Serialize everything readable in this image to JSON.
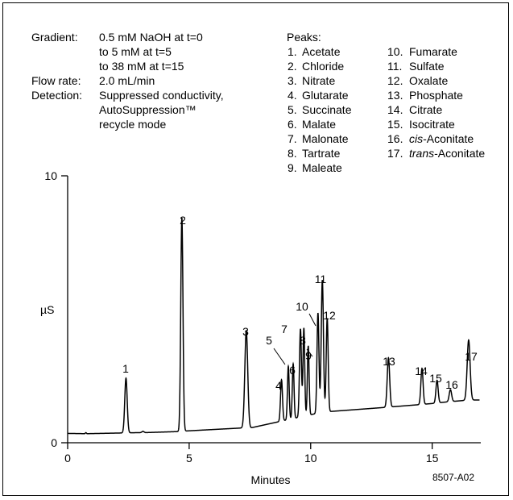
{
  "conditions": {
    "gradient_label": "Gradient:",
    "gradient_lines": [
      "0.5 mM NaOH at t=0",
      "to 5 mM at t=5",
      "to 38 mM at t=15"
    ],
    "flow_label": "Flow rate:",
    "flow_value": "2.0 mL/min",
    "detection_label": "Detection:",
    "detection_lines": [
      "Suppressed conductivity,",
      "AutoSuppression™",
      "recycle mode"
    ]
  },
  "peaks_legend": {
    "title": "Peaks:",
    "col1": [
      {
        "num": "1.",
        "name": "Acetate"
      },
      {
        "num": "2.",
        "name": "Chloride"
      },
      {
        "num": "3.",
        "name": "Nitrate"
      },
      {
        "num": "4.",
        "name": "Glutarate"
      },
      {
        "num": "5.",
        "name": "Succinate"
      },
      {
        "num": "6.",
        "name": "Malate"
      },
      {
        "num": "7.",
        "name": "Malonate"
      },
      {
        "num": "8.",
        "name": "Tartrate"
      },
      {
        "num": "9.",
        "name": "Maleate"
      }
    ],
    "col2": [
      {
        "num": "10.",
        "italic": "",
        "name": "Fumarate"
      },
      {
        "num": "11.",
        "italic": "",
        "name": "Sulfate"
      },
      {
        "num": "12.",
        "italic": "",
        "name": "Oxalate"
      },
      {
        "num": "13.",
        "italic": "",
        "name": "Phosphate"
      },
      {
        "num": "14.",
        "italic": "",
        "name": "Citrate"
      },
      {
        "num": "15.",
        "italic": "",
        "name": "Isocitrate"
      },
      {
        "num": "16.",
        "italic": "cis",
        "name": "-Aconitate"
      },
      {
        "num": "17.",
        "italic": "trans",
        "name": "-Aconitate"
      }
    ]
  },
  "figure_id": "8507-A02",
  "chart_data": {
    "type": "line",
    "xlabel": "Minutes",
    "ylabel": "µS",
    "xlim": [
      0,
      17
    ],
    "ylim": [
      0,
      10
    ],
    "xticks": [
      0,
      5,
      10,
      15
    ],
    "yticks": [
      0,
      10
    ],
    "grid": false,
    "baseline": [
      [
        0,
        0.35
      ],
      [
        0.7,
        0.34
      ],
      [
        0.75,
        0.38
      ],
      [
        0.8,
        0.34
      ],
      [
        3.0,
        0.38
      ],
      [
        3.1,
        0.43
      ],
      [
        3.2,
        0.38
      ],
      [
        4.6,
        0.42
      ],
      [
        4.85,
        0.44
      ],
      [
        7.1,
        0.55
      ],
      [
        7.5,
        0.55
      ],
      [
        8.5,
        0.75
      ],
      [
        9.0,
        0.85
      ],
      [
        10.0,
        1.05
      ],
      [
        10.5,
        1.15
      ],
      [
        13.0,
        1.32
      ],
      [
        14.5,
        1.43
      ],
      [
        15.0,
        1.47
      ],
      [
        15.5,
        1.52
      ],
      [
        16.0,
        1.56
      ],
      [
        16.5,
        1.6
      ],
      [
        16.9,
        1.6
      ]
    ],
    "peaks": [
      {
        "label": "1",
        "t": 2.4,
        "height": 2.05,
        "width": 0.05
      },
      {
        "label": "2",
        "t": 4.7,
        "height": 8.0,
        "width": 0.045
      },
      {
        "label": "3",
        "t": 7.35,
        "height": 3.65,
        "width": 0.06
      },
      {
        "label": "4",
        "t": 8.8,
        "height": 1.55,
        "width": 0.04
      },
      {
        "label": "5",
        "t": 9.08,
        "height": 2.0,
        "width": 0.035
      },
      {
        "label": "6",
        "t": 9.28,
        "height": 2.05,
        "width": 0.035
      },
      {
        "label": "7",
        "t": 9.58,
        "height": 3.3,
        "width": 0.04
      },
      {
        "label": "8",
        "t": 9.72,
        "height": 3.3,
        "width": 0.035
      },
      {
        "label": "9",
        "t": 9.9,
        "height": 2.6,
        "width": 0.035
      },
      {
        "label": "10",
        "t": 10.3,
        "height": 3.75,
        "width": 0.04
      },
      {
        "label": "11",
        "t": 10.48,
        "height": 4.95,
        "width": 0.045
      },
      {
        "label": "12",
        "t": 10.68,
        "height": 3.5,
        "width": 0.04
      },
      {
        "label": "13",
        "t": 13.2,
        "height": 1.85,
        "width": 0.05
      },
      {
        "label": "14",
        "t": 14.58,
        "height": 1.35,
        "width": 0.045
      },
      {
        "label": "15",
        "t": 15.2,
        "height": 0.85,
        "width": 0.045
      },
      {
        "label": "16",
        "t": 15.75,
        "height": 0.45,
        "width": 0.05
      },
      {
        "label": "17",
        "t": 16.5,
        "height": 2.25,
        "width": 0.06
      }
    ]
  }
}
